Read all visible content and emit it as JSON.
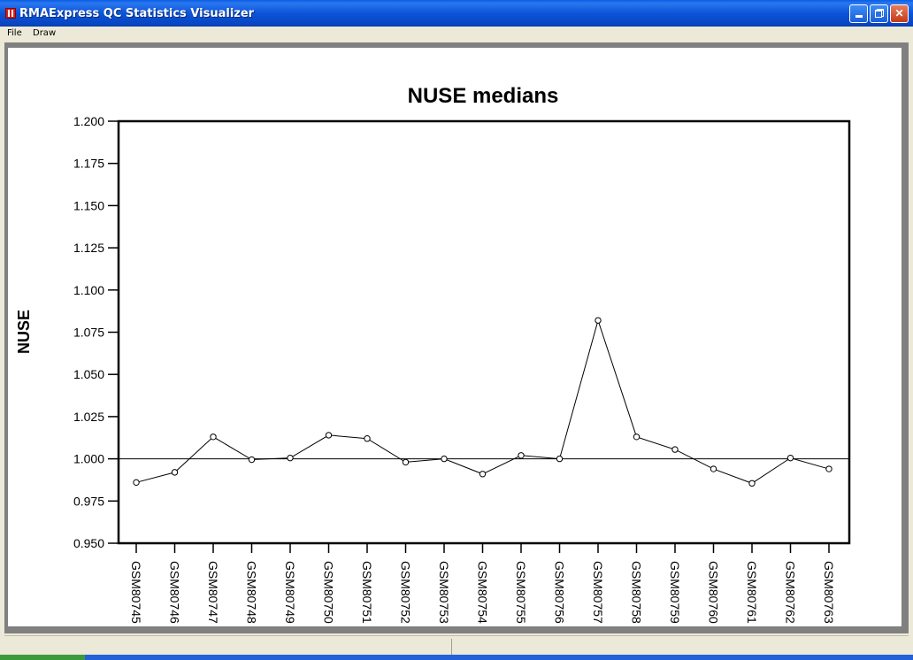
{
  "window": {
    "title": "RMAExpress QC Statistics Visualizer"
  },
  "menu": {
    "items": [
      "File",
      "Draw"
    ]
  },
  "chart_data": {
    "type": "line",
    "title": "NUSE medians",
    "xlabel": "",
    "ylabel": "NUSE",
    "ylim": [
      0.95,
      1.2
    ],
    "yticks": [
      "0.950",
      "0.975",
      "1.000",
      "1.025",
      "1.050",
      "1.075",
      "1.100",
      "1.125",
      "1.150",
      "1.175",
      "1.200"
    ],
    "reference_line": 1.0,
    "grid": false,
    "categories": [
      "GSM80745",
      "GSM80746",
      "GSM80747",
      "GSM80748",
      "GSM80749",
      "GSM80750",
      "GSM80751",
      "GSM80752",
      "GSM80753",
      "GSM80754",
      "GSM80755",
      "GSM80756",
      "GSM80757",
      "GSM80758",
      "GSM80759",
      "GSM80760",
      "GSM80761",
      "GSM80762",
      "GSM80763"
    ],
    "series": [
      {
        "values": [
          0.986,
          0.992,
          1.013,
          0.9995,
          1.0005,
          1.014,
          1.012,
          0.998,
          1.0,
          0.991,
          1.002,
          1.0,
          1.082,
          1.013,
          1.0055,
          0.994,
          0.9855,
          1.0005,
          0.994
        ]
      }
    ]
  }
}
